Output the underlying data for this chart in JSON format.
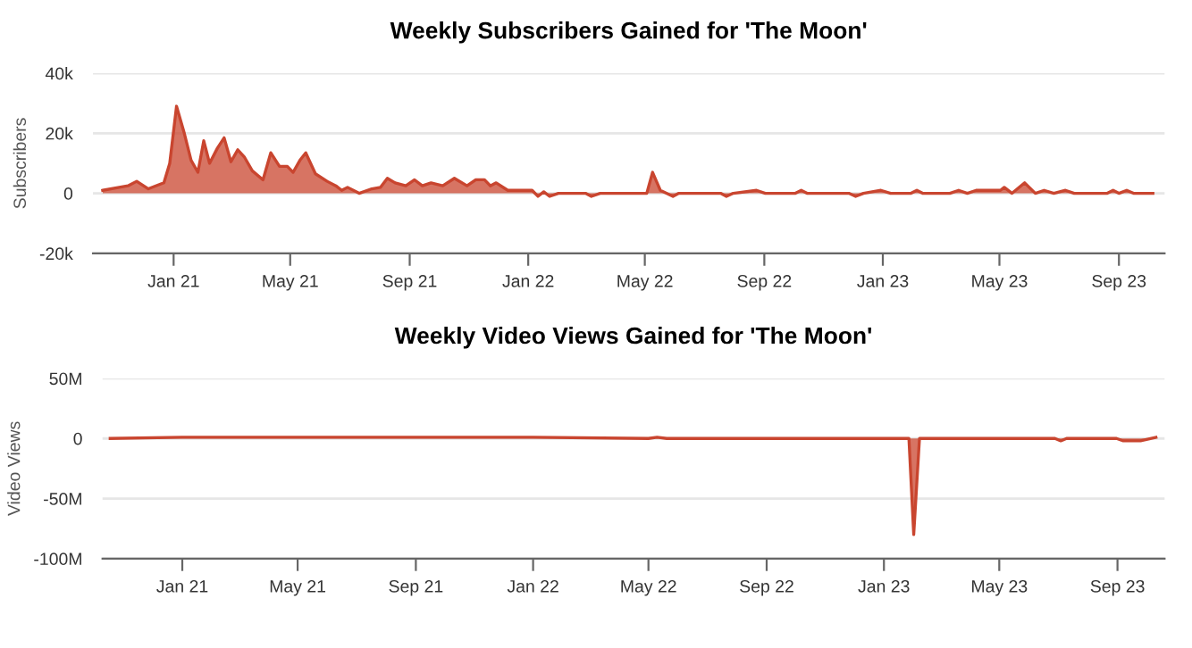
{
  "chart_data": [
    {
      "type": "area",
      "title": "Weekly Subscribers Gained for 'The Moon'",
      "ylabel": "Subscribers",
      "grid": "y",
      "x": [
        "2020-10-20",
        "2020-11-06",
        "2020-11-15",
        "2020-11-24",
        "2020-12-06",
        "2020-12-22",
        "2020-12-28",
        "2021-01-04",
        "2021-01-12",
        "2021-01-19",
        "2021-01-26",
        "2021-02-01",
        "2021-02-07",
        "2021-02-15",
        "2021-02-22",
        "2021-03-01",
        "2021-03-08",
        "2021-03-15",
        "2021-03-23",
        "2021-04-03",
        "2021-04-11",
        "2021-04-20",
        "2021-04-28",
        "2021-05-04",
        "2021-05-11",
        "2021-05-17",
        "2021-05-27",
        "2021-06-08",
        "2021-06-17",
        "2021-06-23",
        "2021-06-29",
        "2021-07-11",
        "2021-07-24",
        "2021-08-02",
        "2021-08-09",
        "2021-08-17",
        "2021-08-28",
        "2021-09-06",
        "2021-09-14",
        "2021-09-23",
        "2021-10-05",
        "2021-10-17",
        "2021-10-30",
        "2021-11-08",
        "2021-11-17",
        "2021-11-23",
        "2021-11-29",
        "2021-12-11",
        "2022-01-05",
        "2022-01-11",
        "2022-01-17",
        "2022-01-23",
        "2022-02-01",
        "2022-03-01",
        "2022-03-07",
        "2022-03-16",
        "2022-05-03",
        "2022-05-09",
        "2022-05-17",
        "2022-05-30",
        "2022-06-05",
        "2022-07-18",
        "2022-07-24",
        "2022-07-31",
        "2022-08-24",
        "2022-09-02",
        "2022-10-03",
        "2022-10-09",
        "2022-10-15",
        "2022-11-27",
        "2022-12-04",
        "2022-12-12",
        "2022-12-30",
        "2023-01-09",
        "2023-01-30",
        "2023-02-05",
        "2023-02-11",
        "2023-03-11",
        "2023-03-20",
        "2023-03-29",
        "2023-04-07",
        "2023-05-02",
        "2023-05-06",
        "2023-05-14",
        "2023-05-27",
        "2023-06-07",
        "2023-06-16",
        "2023-06-26",
        "2023-07-08",
        "2023-07-17",
        "2023-08-20",
        "2023-08-26",
        "2023-09-01",
        "2023-09-09",
        "2023-09-16",
        "2023-10-06"
      ],
      "series": [
        {
          "color": "#c9452f",
          "values": [
            1000,
            2000,
            2500,
            4000,
            1500,
            3500,
            10000,
            29000,
            20000,
            11000,
            7000,
            17500,
            10000,
            15000,
            18500,
            10500,
            14500,
            12000,
            7500,
            4500,
            13500,
            9000,
            9000,
            7000,
            11000,
            13500,
            6500,
            4000,
            2500,
            1000,
            2000,
            0,
            1500,
            2000,
            5000,
            3500,
            2500,
            4500,
            2500,
            3500,
            2500,
            5000,
            2500,
            4500,
            4500,
            2500,
            3500,
            1000,
            1000,
            -1000,
            500,
            -1000,
            0,
            0,
            -1000,
            0,
            0,
            7000,
            1000,
            -1000,
            0,
            0,
            -1000,
            0,
            1000,
            0,
            0,
            1000,
            0,
            0,
            -1000,
            0,
            1000,
            0,
            0,
            1000,
            0,
            0,
            1000,
            0,
            1000,
            1000,
            2000,
            0,
            3500,
            0,
            1000,
            0,
            1000,
            0,
            0,
            1000,
            0,
            1000,
            0,
            0
          ]
        }
      ],
      "xlim": [
        "2020-10-10",
        "2023-10-18"
      ],
      "xticks": [
        {
          "value": "2021-01-01",
          "label": "Jan 21"
        },
        {
          "value": "2021-05-01",
          "label": "May 21"
        },
        {
          "value": "2021-09-01",
          "label": "Sep 21"
        },
        {
          "value": "2022-01-01",
          "label": "Jan 22"
        },
        {
          "value": "2022-05-01",
          "label": "May 22"
        },
        {
          "value": "2022-09-01",
          "label": "Sep 22"
        },
        {
          "value": "2023-01-01",
          "label": "Jan 23"
        },
        {
          "value": "2023-05-01",
          "label": "May 23"
        },
        {
          "value": "2023-09-01",
          "label": "Sep 23"
        }
      ],
      "ylim": [
        -20000,
        40000
      ],
      "yticks": [
        {
          "value": -20000,
          "label": "-20k"
        },
        0,
        {
          "value": 20000,
          "label": "20k"
        },
        {
          "value": 40000,
          "label": "40k"
        }
      ]
    },
    {
      "type": "area",
      "title": "Weekly Video Views Gained for 'The Moon'",
      "ylabel": "Video Views",
      "grid": "y",
      "x": [
        "2020-10-18",
        "2021-01-01",
        "2021-05-01",
        "2021-09-01",
        "2022-01-01",
        "2022-05-01",
        "2022-05-10",
        "2022-05-20",
        "2023-01-27",
        "2023-02-01",
        "2023-02-07",
        "2023-06-28",
        "2023-07-04",
        "2023-07-10",
        "2023-08-31",
        "2023-09-07",
        "2023-09-25",
        "2023-10-11"
      ],
      "series": [
        {
          "color": "#c9452f",
          "values": [
            0,
            1000000,
            1000000,
            1000000,
            1000000,
            0,
            1000000,
            0,
            0,
            -80000000,
            0,
            0,
            -2000000,
            0,
            0,
            -2000000,
            -2000000,
            1000000
          ]
        }
      ],
      "xlim": [
        "2020-10-10",
        "2023-10-20"
      ],
      "xticks": [
        {
          "value": "2021-01-01",
          "label": "Jan 21"
        },
        {
          "value": "2021-05-01",
          "label": "May 21"
        },
        {
          "value": "2021-09-01",
          "label": "Sep 21"
        },
        {
          "value": "2022-01-01",
          "label": "Jan 22"
        },
        {
          "value": "2022-05-01",
          "label": "May 22"
        },
        {
          "value": "2022-09-01",
          "label": "Sep 22"
        },
        {
          "value": "2023-01-01",
          "label": "Jan 23"
        },
        {
          "value": "2023-05-01",
          "label": "May 23"
        },
        {
          "value": "2023-09-01",
          "label": "Sep 23"
        }
      ],
      "ylim": [
        -100000000,
        50000000
      ],
      "yticks": [
        {
          "value": -100000000,
          "label": "-100M"
        },
        {
          "value": -50000000,
          "label": "-50M"
        },
        0,
        {
          "value": 50000000,
          "label": "50M"
        }
      ]
    }
  ]
}
